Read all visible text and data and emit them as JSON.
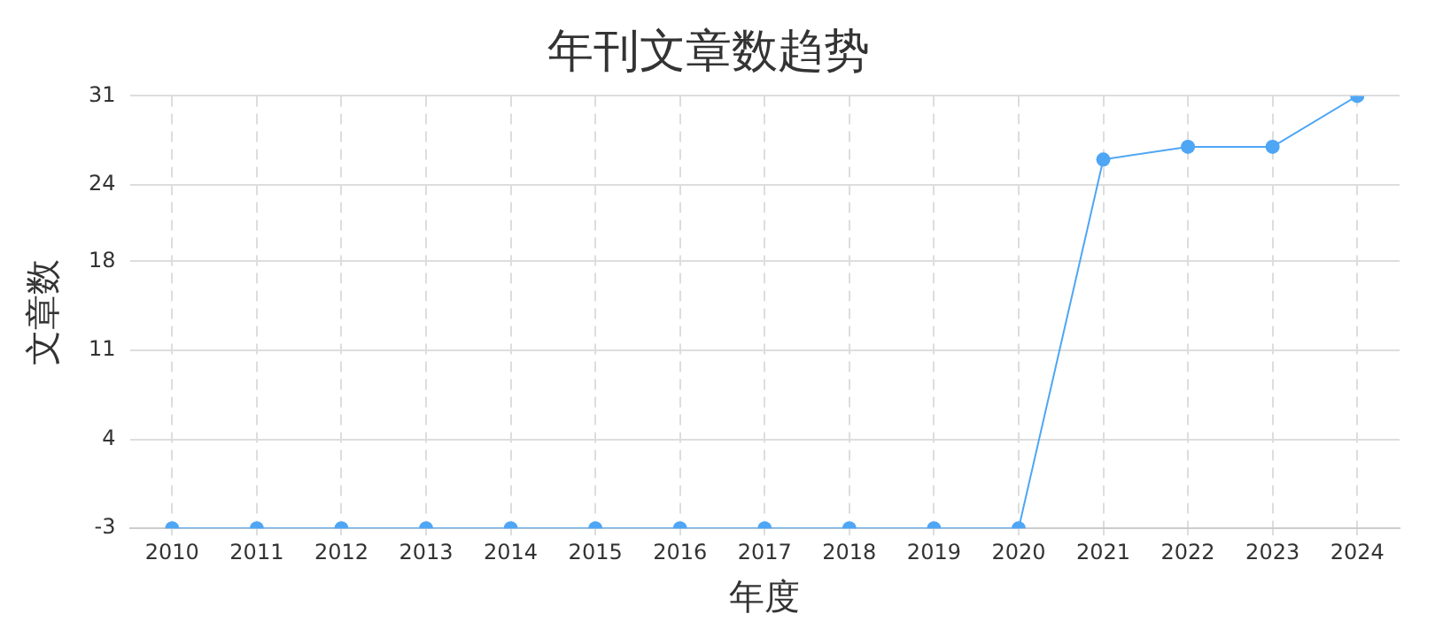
{
  "chart_data": {
    "type": "line",
    "title": "年刊文章数趋势",
    "xlabel": "年度",
    "ylabel": "文章数",
    "categories": [
      "2010",
      "2011",
      "2012",
      "2013",
      "2014",
      "2015",
      "2016",
      "2017",
      "2018",
      "2019",
      "2020",
      "2021",
      "2022",
      "2023",
      "2024"
    ],
    "series": [
      {
        "color": "#4ea6f5",
        "values": [
          -3,
          -3,
          -3,
          -3,
          -3,
          -3,
          -3,
          -3,
          -3,
          -3,
          -3,
          26,
          27,
          27,
          31
        ]
      }
    ],
    "ylim": [
      -3,
      31
    ],
    "yticks": [
      -3,
      4,
      11,
      18,
      24,
      31
    ],
    "grid": true,
    "marker": "circle",
    "line_style": "solid",
    "legend": false
  }
}
